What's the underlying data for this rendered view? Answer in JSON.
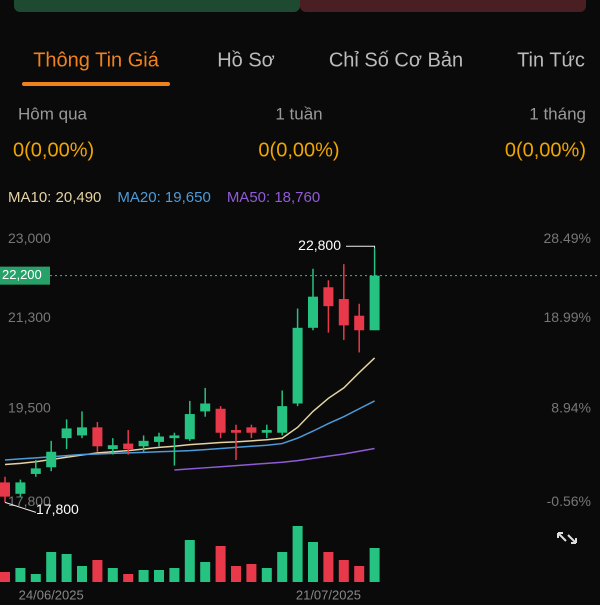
{
  "tabs": [
    "Thông Tin Giá",
    "Hồ Sơ",
    "Chỉ Số Cơ Bản",
    "Tin Tức"
  ],
  "periods": [
    {
      "label": "Hôm qua",
      "value": "0(0,00%)"
    },
    {
      "label": "1 tuần",
      "value": "0(0,00%)"
    },
    {
      "label": "1 tháng",
      "value": "0(0,00%)"
    }
  ],
  "chart_data": {
    "type": "candlestick",
    "log_scale": true,
    "categories": [
      null,
      null,
      null,
      "24/06/2025",
      null,
      null,
      null,
      null,
      null,
      null,
      null,
      null,
      null,
      null,
      null,
      null,
      null,
      null,
      null,
      null,
      null,
      "21/07/2025",
      null,
      null,
      null
    ],
    "open": [
      18150,
      17950,
      18300,
      18420,
      18950,
      19000,
      19150,
      18750,
      18850,
      18800,
      18880,
      18950,
      18930,
      19450,
      19500,
      19100,
      19150,
      19050,
      19050,
      19600,
      21100,
      21950,
      21700,
      21350,
      21050
    ],
    "high": [
      18250,
      18200,
      18550,
      18900,
      19300,
      19450,
      19250,
      18950,
      19100,
      19000,
      19050,
      19050,
      19650,
      19900,
      19550,
      19200,
      19200,
      19200,
      19850,
      21500,
      22350,
      22100,
      22450,
      21600,
      22800
    ],
    "low": [
      17800,
      17900,
      18250,
      18350,
      18750,
      18950,
      18700,
      18650,
      18650,
      18700,
      18800,
      18450,
      18900,
      19350,
      18950,
      18550,
      18950,
      18950,
      19000,
      19550,
      21050,
      21000,
      20850,
      20600,
      21050
    ],
    "close": [
      17900,
      18150,
      18400,
      18700,
      19130,
      19150,
      18800,
      18820,
      18750,
      18900,
      18980,
      19000,
      19400,
      19600,
      19050,
      19050,
      19050,
      19100,
      19550,
      21100,
      21750,
      21550,
      21150,
      21050,
      22200
    ],
    "volume": [
      10,
      14,
      8,
      30,
      28,
      16,
      22,
      14,
      8,
      12,
      12,
      14,
      42,
      20,
      36,
      16,
      18,
      14,
      30,
      56,
      40,
      30,
      22,
      16,
      34
    ],
    "vlim": [
      0,
      60
    ],
    "up_color": "#26c281",
    "down_color": "#e8394a",
    "series": [
      {
        "name": "MA10: 20,490",
        "color": "#e6d3a3",
        "values": [
          18470,
          18490,
          18520,
          18560,
          18600,
          18640,
          18680,
          18700,
          18720,
          18750,
          18780,
          18800,
          18830,
          18850,
          18870,
          18880,
          18900,
          18920,
          18950,
          19150,
          19450,
          19700,
          19900,
          20200,
          20490
        ]
      },
      {
        "name": "MA20: 19,650",
        "color": "#4e9bd9",
        "values": [
          18550,
          18570,
          18590,
          18610,
          18630,
          18650,
          18660,
          18670,
          18680,
          18690,
          18700,
          18710,
          18720,
          18740,
          18760,
          18780,
          18800,
          18820,
          18850,
          18950,
          19080,
          19220,
          19350,
          19500,
          19650
        ]
      },
      {
        "name": "MA50: 18,760",
        "color": "#8f5bd6",
        "values": [
          null,
          null,
          null,
          null,
          null,
          null,
          null,
          null,
          null,
          null,
          null,
          18370,
          18390,
          18410,
          18430,
          18450,
          18470,
          18490,
          18510,
          18540,
          18580,
          18620,
          18660,
          18710,
          18760
        ]
      }
    ],
    "ylim": [
      17600,
      23300
    ],
    "yticks": [
      {
        "value": 23000,
        "label": "23,000"
      },
      {
        "value": 21300,
        "label": "21,300"
      },
      {
        "value": 19500,
        "label": "19,500"
      },
      {
        "value": 17800,
        "label": "17,800"
      }
    ],
    "y2lim": [
      -1.68,
      30.17
    ],
    "y2ticks": [
      {
        "value": 28.49,
        "label": "28.49%"
      },
      {
        "value": 18.99,
        "label": "18.99%"
      },
      {
        "value": 8.94,
        "label": "8.94%"
      },
      {
        "value": -0.56,
        "label": "-0.56%"
      }
    ],
    "last_price": {
      "value": 22200,
      "label": "22,200"
    },
    "high_label": {
      "value": 22800,
      "label": "22,800"
    },
    "low_label": {
      "value": 17800,
      "label": "17,800"
    }
  }
}
